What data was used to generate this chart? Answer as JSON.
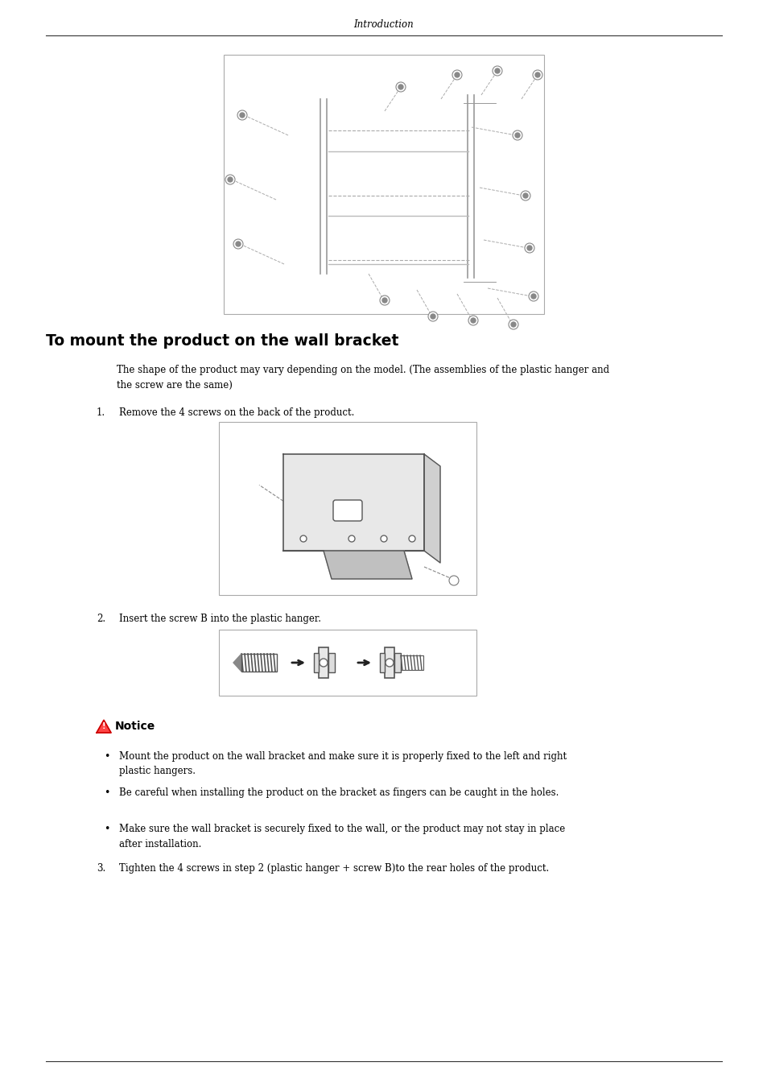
{
  "page_title": "Introduction",
  "section_title": "To mount the product on the wall bracket",
  "intro_text": "The shape of the product may vary depending on the model. (The assemblies of the plastic hanger and\nthe screw are the same)",
  "step1_label": "1.",
  "step1_text": "Remove the 4 screws on the back of the product.",
  "step2_label": "2.",
  "step2_text": "Insert the screw B into the plastic hanger.",
  "step3_label": "3.",
  "step3_text": "Tighten the 4 screws in step 2 (plastic hanger + screw B)to the rear holes of the product.",
  "notice_title": "Notice",
  "notice_bullets": [
    "Mount the product on the wall bracket and make sure it is properly fixed to the left and right\nplastic hangers.",
    "Be careful when installing the product on the bracket as fingers can be caught in the holes.",
    "Make sure the wall bracket is securely fixed to the wall, or the product may not stay in place\nafter installation."
  ],
  "bg_color": "#ffffff",
  "text_color": "#000000",
  "line_color": "#000000"
}
